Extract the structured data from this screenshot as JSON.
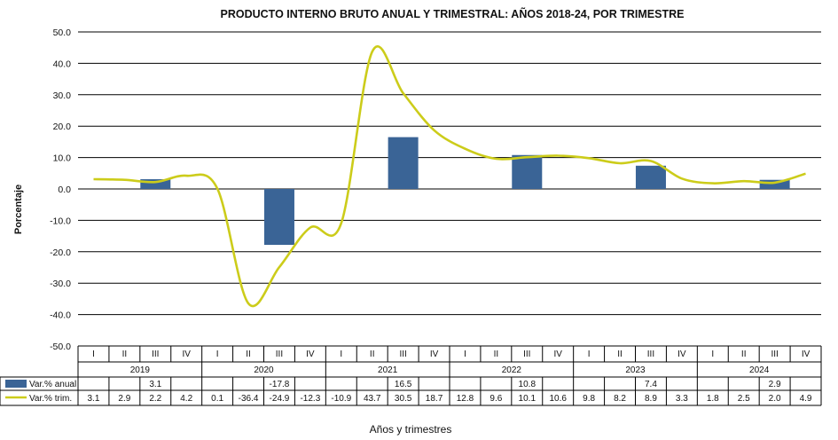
{
  "chart_data": {
    "type": "bar+line",
    "title": "PRODUCTO INTERNO BRUTO ANUAL Y TRIMESTRAL: AÑOS 2018-24, POR TRIMESTRE",
    "ylabel": "Porcentaje",
    "xlabel": "Años y trimestres",
    "ylim": [
      -50,
      50
    ],
    "yticks": [
      "50.0",
      "40.0",
      "30.0",
      "20.0",
      "10.0",
      "0.0",
      "-10.0",
      "-20.0",
      "-30.0",
      "-40.0",
      "-50.0"
    ],
    "grid": true,
    "quarters": [
      "I",
      "II",
      "III",
      "IV"
    ],
    "years": [
      "2019",
      "2020",
      "2021",
      "2022",
      "2023",
      "2024"
    ],
    "series": [
      {
        "name": "Var.% anual",
        "type": "bar",
        "color": "#3a6496",
        "values": [
          null,
          null,
          3.1,
          null,
          null,
          null,
          -17.8,
          null,
          null,
          null,
          16.5,
          null,
          null,
          null,
          10.8,
          null,
          null,
          null,
          7.4,
          null,
          null,
          null,
          2.9,
          null
        ],
        "labels": [
          "",
          "",
          "3.1",
          "",
          "",
          "",
          "-17.8",
          "",
          "",
          "",
          "16.5",
          "",
          "",
          "",
          "10.8",
          "",
          "",
          "",
          "7.4",
          "",
          "",
          "",
          "2.9",
          ""
        ]
      },
      {
        "name": "Var.% trim.",
        "type": "line",
        "color": "#cccc1a",
        "values": [
          3.1,
          2.9,
          2.2,
          4.2,
          0.1,
          -36.4,
          -24.9,
          -12.3,
          -10.9,
          43.7,
          30.5,
          18.7,
          12.8,
          9.6,
          10.1,
          10.6,
          9.8,
          8.2,
          8.9,
          3.3,
          1.8,
          2.5,
          2.0,
          4.9
        ],
        "labels": [
          "3.1",
          "2.9",
          "2.2",
          "4.2",
          "0.1",
          "-36.4",
          "-24.9",
          "-12.3",
          "-10.9",
          "43.7",
          "30.5",
          "18.7",
          "12.8",
          "9.6",
          "10.1",
          "10.6",
          "9.8",
          "8.2",
          "8.9",
          "3.3",
          "1.8",
          "2.5",
          "2.0",
          "4.9"
        ]
      }
    ]
  }
}
